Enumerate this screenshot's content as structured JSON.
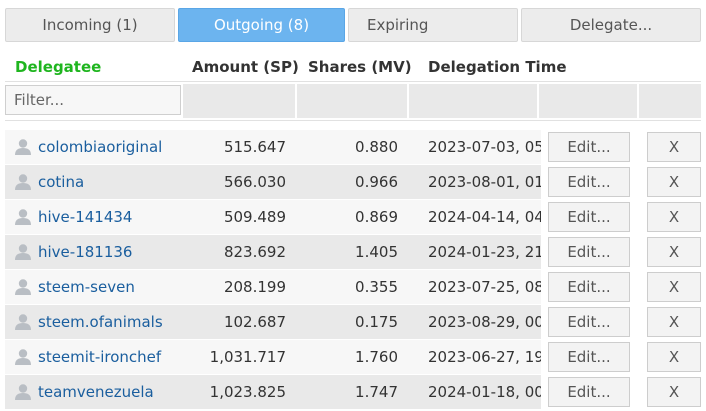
{
  "tabs": {
    "incoming": "Incoming (1)",
    "outgoing": "Outgoing (8)",
    "expiring": "Expiring",
    "delegate": "Delegate..."
  },
  "table": {
    "headers": {
      "delegatee": "Delegatee",
      "amount": "Amount (SP)",
      "shares": "Shares (MV)",
      "time": "Delegation Time"
    },
    "filter_placeholder": "Filter...",
    "edit_label": "Edit...",
    "delete_label": "X",
    "rows": [
      {
        "name": "colombiaoriginal",
        "amount": "515.647",
        "shares": "0.880",
        "time": "2023-07-03, 05:"
      },
      {
        "name": "cotina",
        "amount": "566.030",
        "shares": "0.966",
        "time": "2023-08-01, 01:"
      },
      {
        "name": "hive-141434",
        "amount": "509.489",
        "shares": "0.869",
        "time": "2024-04-14, 04:"
      },
      {
        "name": "hive-181136",
        "amount": "823.692",
        "shares": "1.405",
        "time": "2024-01-23, 21:"
      },
      {
        "name": "steem-seven",
        "amount": "208.199",
        "shares": "0.355",
        "time": "2023-07-25, 08:"
      },
      {
        "name": "steem.ofanimals",
        "amount": "102.687",
        "shares": "0.175",
        "time": "2023-08-29, 00:"
      },
      {
        "name": "steemit-ironchef",
        "amount": "1,031.717",
        "shares": "1.760",
        "time": "2023-06-27, 19:"
      },
      {
        "name": "teamvenezuela",
        "amount": "1,023.825",
        "shares": "1.747",
        "time": "2024-01-18, 00:"
      }
    ]
  },
  "colors": {
    "active_tab": "#6cb4ef",
    "header_green": "#1fb51f",
    "link_blue": "#1a5e9e"
  }
}
